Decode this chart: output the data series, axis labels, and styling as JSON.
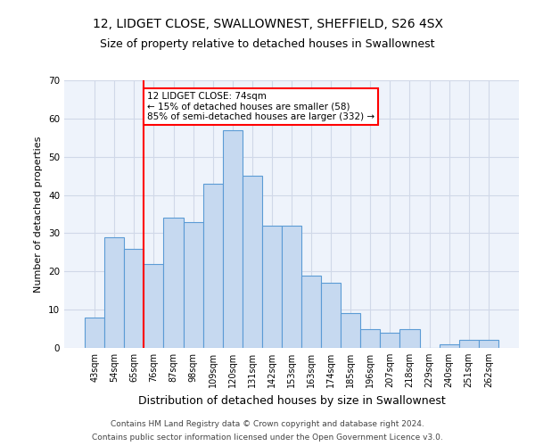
{
  "title": "12, LIDGET CLOSE, SWALLOWNEST, SHEFFIELD, S26 4SX",
  "subtitle": "Size of property relative to detached houses in Swallownest",
  "xlabel": "Distribution of detached houses by size in Swallownest",
  "ylabel": "Number of detached properties",
  "footer_line1": "Contains HM Land Registry data © Crown copyright and database right 2024.",
  "footer_line2": "Contains public sector information licensed under the Open Government Licence v3.0.",
  "bar_labels": [
    "43sqm",
    "54sqm",
    "65sqm",
    "76sqm",
    "87sqm",
    "98sqm",
    "109sqm",
    "120sqm",
    "131sqm",
    "142sqm",
    "153sqm",
    "163sqm",
    "174sqm",
    "185sqm",
    "196sqm",
    "207sqm",
    "218sqm",
    "229sqm",
    "240sqm",
    "251sqm",
    "262sqm"
  ],
  "bar_values": [
    8,
    29,
    26,
    22,
    34,
    33,
    43,
    57,
    45,
    32,
    32,
    19,
    17,
    9,
    5,
    4,
    5,
    0,
    1,
    2,
    2
  ],
  "bar_color": "#c6d9f0",
  "bar_edgecolor": "#5b9bd5",
  "vline_x_index": 2.5,
  "vline_color": "red",
  "annotation_text": "12 LIDGET CLOSE: 74sqm\n← 15% of detached houses are smaller (58)\n85% of semi-detached houses are larger (332) →",
  "annotation_box_color": "white",
  "annotation_box_edgecolor": "red",
  "ylim": [
    0,
    70
  ],
  "yticks": [
    0,
    10,
    20,
    30,
    40,
    50,
    60,
    70
  ],
  "grid_color": "#d0d8e8",
  "bg_color": "#eef3fb",
  "title_fontsize": 10,
  "subtitle_fontsize": 9,
  "tick_fontsize": 7,
  "ylabel_fontsize": 8,
  "xlabel_fontsize": 9
}
